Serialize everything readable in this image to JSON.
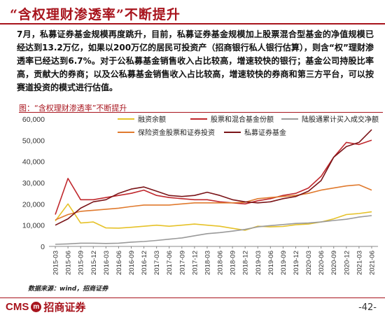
{
  "page_title": "“含权理财渗透率”不断提升",
  "paragraph": "7月，私募证券基金规模再度跳升，目前，私募证券基金规模加上股票混合型基金的净值规模已经达到13.2万亿，如果以200万亿的居民可投资产（招商银行私人银行估算），则含“权”理财渗透率已经达到6.7%。对于公私募基金销售收入占比较高，增速较快的银行；基金公司持股比率高，贡献大的券商；以及公私募基金销售收入占比较高，增速较快的券商和第三方平台，可以按赛道投资的模式进行估值。",
  "chart_heading": "图：“含权理财渗透率”不断提升",
  "source": "数据来源：wind，招商证券",
  "brand": {
    "mark": "m",
    "text_cms": "CMS",
    "text_cn": "招商证券",
    "color": "#a8141d"
  },
  "page_number": "-42-",
  "chart_data": {
    "type": "line",
    "title": "",
    "xlabel": "",
    "ylabel": "",
    "ylim": [
      0,
      60000
    ],
    "yticks": [
      "0",
      "10,000",
      "20,000",
      "30,000",
      "40,000",
      "50,000",
      "60,000"
    ],
    "x": [
      "2015-03",
      "2015-06",
      "2015-09",
      "2015-12",
      "2016-03",
      "2016-06",
      "2016-09",
      "2016-12",
      "2017-03",
      "2017-06",
      "2017-09",
      "2017-12",
      "2018-03",
      "2018-06",
      "2018-09",
      "2018-12",
      "2019-03",
      "2019-06",
      "2019-09",
      "2019-12",
      "2020-03",
      "2020-06",
      "2020-09",
      "2020-12",
      "2021-03",
      "2021-06"
    ],
    "legend_placement": "top",
    "grid": false,
    "series": [
      {
        "name": "融资余额",
        "color": "#e6c229",
        "values": [
          12000,
          20000,
          11000,
          11500,
          8700,
          8600,
          9000,
          9500,
          10000,
          9500,
          10000,
          10500,
          10000,
          9500,
          8500,
          7600,
          9500,
          9200,
          9400,
          10200,
          10500,
          11500,
          13000,
          15000,
          15500,
          16300
        ]
      },
      {
        "name": "股票和混合基金份额",
        "color": "#c0282d",
        "values": [
          15000,
          32000,
          22000,
          22000,
          23000,
          24000,
          25000,
          26500,
          24000,
          23000,
          22500,
          22000,
          22000,
          21000,
          20500,
          20000,
          21500,
          22500,
          24000,
          25000,
          27500,
          33000,
          42000,
          49000,
          48000,
          50000
        ]
      },
      {
        "name": "陆股通累计买入成交净额",
        "color": "#9a9a9a",
        "values": [
          1000,
          1200,
          1500,
          1500,
          1400,
          1500,
          2000,
          2300,
          2800,
          3400,
          4000,
          5000,
          6000,
          6500,
          7200,
          8000,
          9200,
          9800,
          10300,
          10800,
          11000,
          11500,
          12200,
          12800,
          13800,
          14500
        ]
      },
      {
        "name": "保险资金股票和证券投资",
        "color": "#e07a2e",
        "values": [
          12500,
          15000,
          16500,
          17000,
          17500,
          18000,
          18800,
          19500,
          19500,
          19500,
          20000,
          20500,
          20500,
          20500,
          20500,
          20800,
          22500,
          23000,
          23500,
          24000,
          25000,
          26500,
          27500,
          28500,
          29000,
          26500
        ]
      },
      {
        "name": "私募证券基金",
        "color": "#7a1418",
        "values": [
          10000,
          13000,
          18000,
          21000,
          22000,
          25000,
          27000,
          28000,
          26000,
          24000,
          23500,
          24000,
          25500,
          24000,
          22000,
          21000,
          20500,
          21000,
          22500,
          23500,
          26000,
          31000,
          42000,
          47000,
          49000,
          55000
        ]
      }
    ]
  }
}
